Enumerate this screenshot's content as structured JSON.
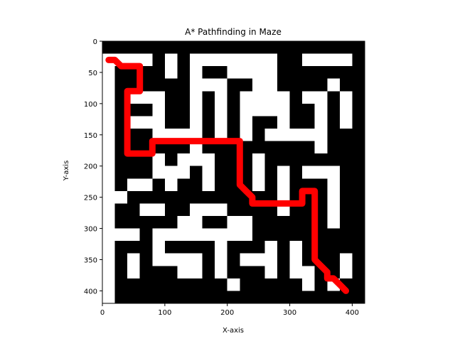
{
  "chart_data": {
    "type": "image-with-path",
    "title": "A* Pathfinding in Maze",
    "xlabel": "X-axis",
    "ylabel": "Y-axis",
    "xlim": [
      0,
      420
    ],
    "ylim": [
      420,
      0
    ],
    "xticks": [
      0,
      100,
      200,
      300,
      400
    ],
    "yticks": [
      0,
      50,
      100,
      150,
      200,
      250,
      300,
      350,
      400
    ],
    "grid": false,
    "maze": {
      "cell_size": 20,
      "wall_color": "#000000",
      "open_color": "#ffffff",
      "open_rects": [
        [
          0,
          20,
          80,
          20
        ],
        [
          0,
          40,
          20,
          380
        ],
        [
          100,
          20,
          20,
          40
        ],
        [
          140,
          20,
          140,
          20
        ],
        [
          320,
          20,
          80,
          20
        ],
        [
          140,
          40,
          20,
          40
        ],
        [
          200,
          40,
          40,
          20
        ],
        [
          240,
          40,
          40,
          80
        ],
        [
          160,
          60,
          40,
          20
        ],
        [
          360,
          60,
          20,
          20
        ],
        [
          40,
          80,
          60,
          20
        ],
        [
          140,
          80,
          20,
          120
        ],
        [
          180,
          80,
          20,
          80
        ],
        [
          220,
          80,
          20,
          80
        ],
        [
          280,
          80,
          20,
          80
        ],
        [
          320,
          80,
          40,
          20
        ],
        [
          380,
          80,
          20,
          40
        ],
        [
          80,
          100,
          20,
          20
        ],
        [
          340,
          100,
          20,
          60
        ],
        [
          260,
          140,
          20,
          20
        ],
        [
          300,
          140,
          60,
          20
        ],
        [
          340,
          160,
          20,
          20
        ],
        [
          380,
          120,
          20,
          20
        ],
        [
          40,
          120,
          60,
          20
        ],
        [
          80,
          140,
          60,
          20
        ],
        [
          80,
          180,
          20,
          40
        ],
        [
          120,
          180,
          20,
          40
        ],
        [
          160,
          180,
          20,
          60
        ],
        [
          240,
          180,
          20,
          60
        ],
        [
          280,
          200,
          20,
          80
        ],
        [
          320,
          200,
          40,
          20
        ],
        [
          360,
          200,
          20,
          100
        ],
        [
          40,
          220,
          40,
          20
        ],
        [
          100,
          200,
          20,
          40
        ],
        [
          20,
          240,
          20,
          20
        ],
        [
          60,
          260,
          40,
          20
        ],
        [
          140,
          260,
          60,
          20
        ],
        [
          200,
          280,
          40,
          40
        ],
        [
          120,
          280,
          40,
          20
        ],
        [
          160,
          300,
          40,
          20
        ],
        [
          20,
          300,
          40,
          20
        ],
        [
          80,
          300,
          80,
          20
        ],
        [
          80,
          320,
          20,
          40
        ],
        [
          40,
          340,
          20,
          40
        ],
        [
          100,
          340,
          60,
          20
        ],
        [
          120,
          360,
          40,
          20
        ],
        [
          180,
          320,
          20,
          60
        ],
        [
          220,
          340,
          40,
          20
        ],
        [
          260,
          320,
          20,
          60
        ],
        [
          300,
          320,
          20,
          60
        ],
        [
          320,
          360,
          20,
          40
        ],
        [
          380,
          340,
          20,
          40
        ],
        [
          200,
          380,
          20,
          20
        ],
        [
          360,
          380,
          20,
          20
        ]
      ]
    },
    "path": {
      "color": "#ff0000",
      "x": [
        10,
        20,
        25,
        30,
        40,
        60,
        60,
        40,
        40,
        80,
        80,
        220,
        220,
        230,
        240,
        240,
        320,
        320,
        340,
        340,
        350,
        360,
        360,
        370,
        380,
        390
      ],
      "y": [
        30,
        30,
        35,
        40,
        40,
        40,
        80,
        80,
        180,
        180,
        160,
        160,
        230,
        240,
        250,
        260,
        260,
        240,
        240,
        350,
        360,
        370,
        380,
        380,
        390,
        400
      ]
    }
  }
}
